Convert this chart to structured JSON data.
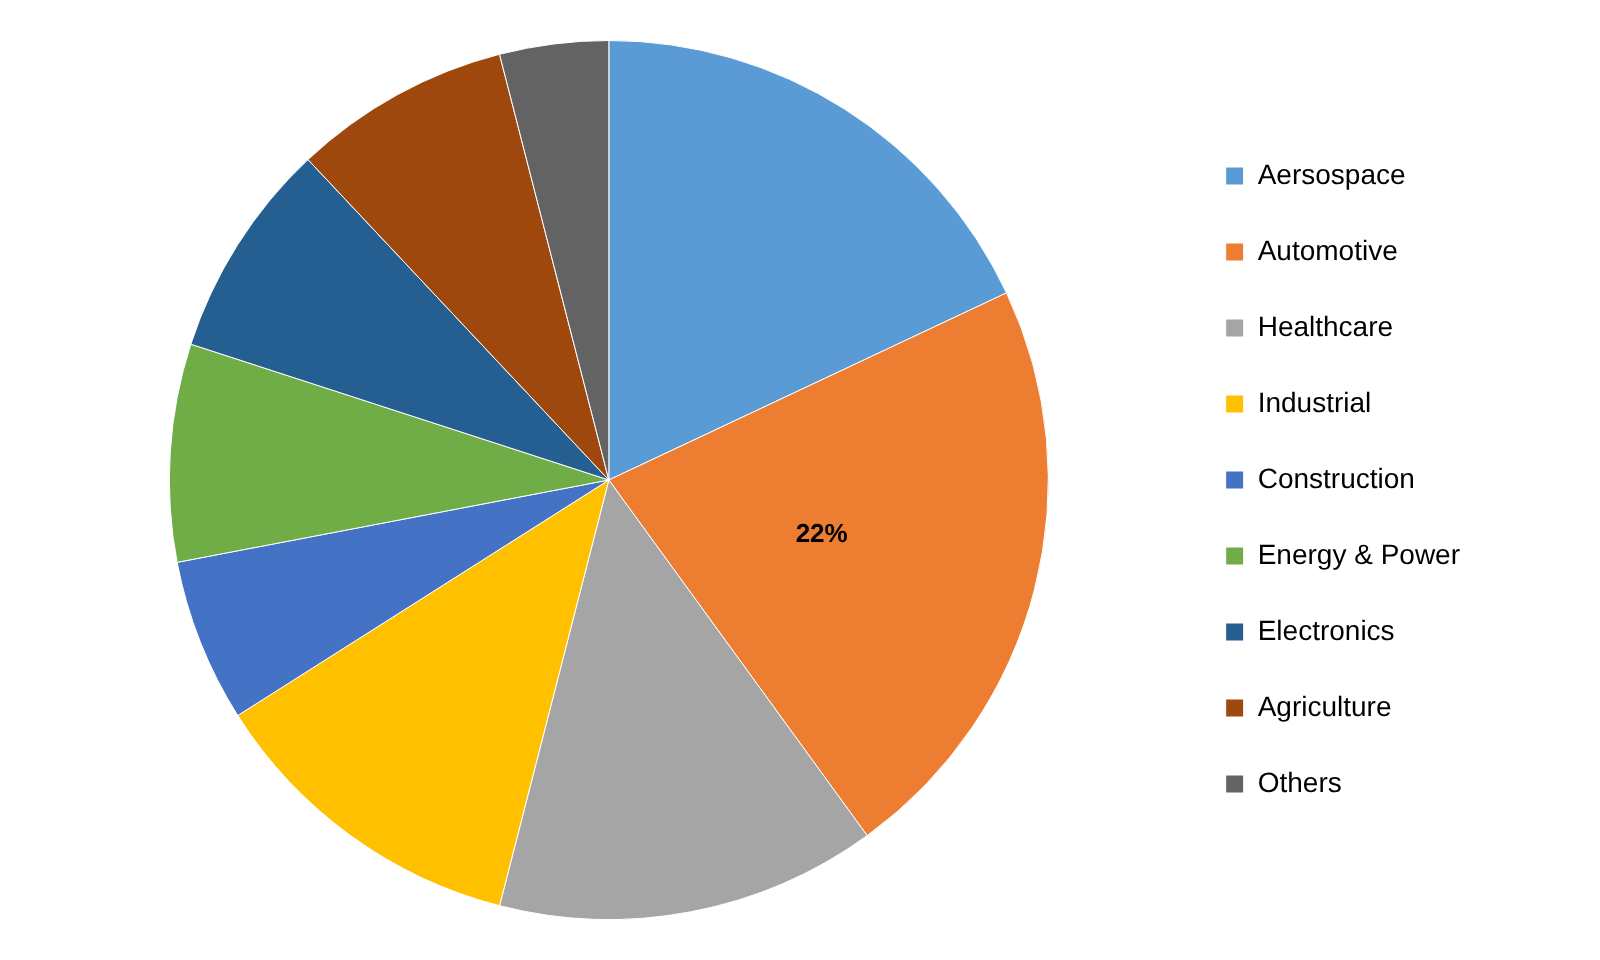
{
  "chart_data": {
    "type": "pie",
    "categories": [
      "Aersospace",
      "Automotive",
      "Healthcare",
      "Industrial",
      "Construction",
      "Energy & Power",
      "Electronics",
      "Agriculture",
      "Others"
    ],
    "values": [
      18,
      22,
      14,
      12,
      6,
      8,
      8,
      8,
      4
    ],
    "colors": [
      "#5b9bd5",
      "#ed7d31",
      "#a5a5a5",
      "#ffc000",
      "#4472c4",
      "#70ad47",
      "#255e91",
      "#9e480e",
      "#636363"
    ],
    "value_labels": [
      null,
      "22%",
      null,
      null,
      null,
      null,
      null,
      null,
      null
    ],
    "legend": "right"
  }
}
